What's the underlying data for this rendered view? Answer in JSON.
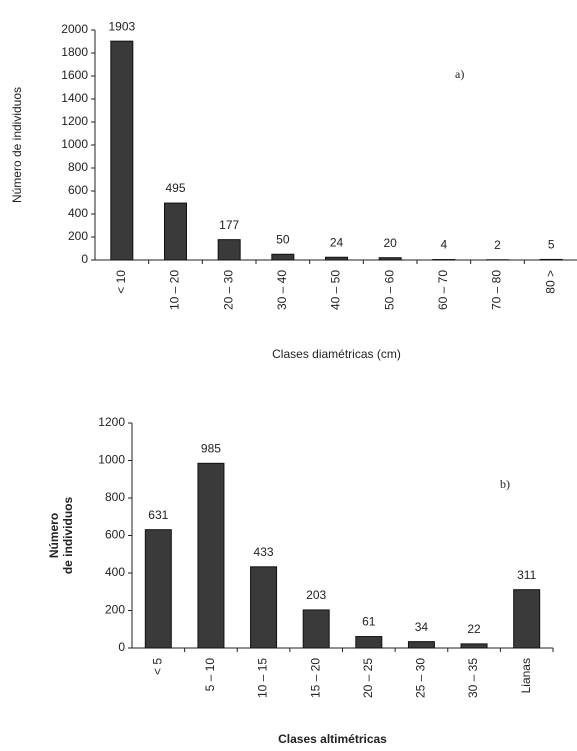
{
  "chart_data": [
    {
      "type": "bar",
      "annotation": "a)",
      "ylabel": [
        "Número de individuos"
      ],
      "xlabel": "Clases diamétricas (cm)",
      "categories": [
        "< 10",
        "10 – 20",
        "20 – 30",
        "30 – 40",
        "40 – 50",
        "50 – 60",
        "60 – 70",
        "70 – 80",
        "80 >"
      ],
      "values": [
        1903,
        495,
        177,
        50,
        24,
        20,
        4,
        2,
        5
      ],
      "color": "#3a3a3a",
      "ylim": [
        0,
        2000
      ],
      "yticks": [
        0,
        200,
        400,
        600,
        800,
        1000,
        1200,
        1400,
        1600,
        1800,
        2000
      ],
      "grid": false
    },
    {
      "type": "bar",
      "annotation": "b)",
      "ylabel": [
        "Número",
        "de individuos"
      ],
      "xlabel": "Clases altimétricas",
      "categories": [
        "< 5",
        "5 – 10",
        "10 – 15",
        "15 – 20",
        "20 – 25",
        "25 – 30",
        "30 – 35",
        "Lianas"
      ],
      "values": [
        631,
        985,
        433,
        203,
        61,
        34,
        22,
        311
      ],
      "color": "#3a3a3a",
      "ylim": [
        0,
        1200
      ],
      "yticks": [
        0,
        200,
        400,
        600,
        800,
        1000,
        1200
      ],
      "grid": false
    }
  ]
}
